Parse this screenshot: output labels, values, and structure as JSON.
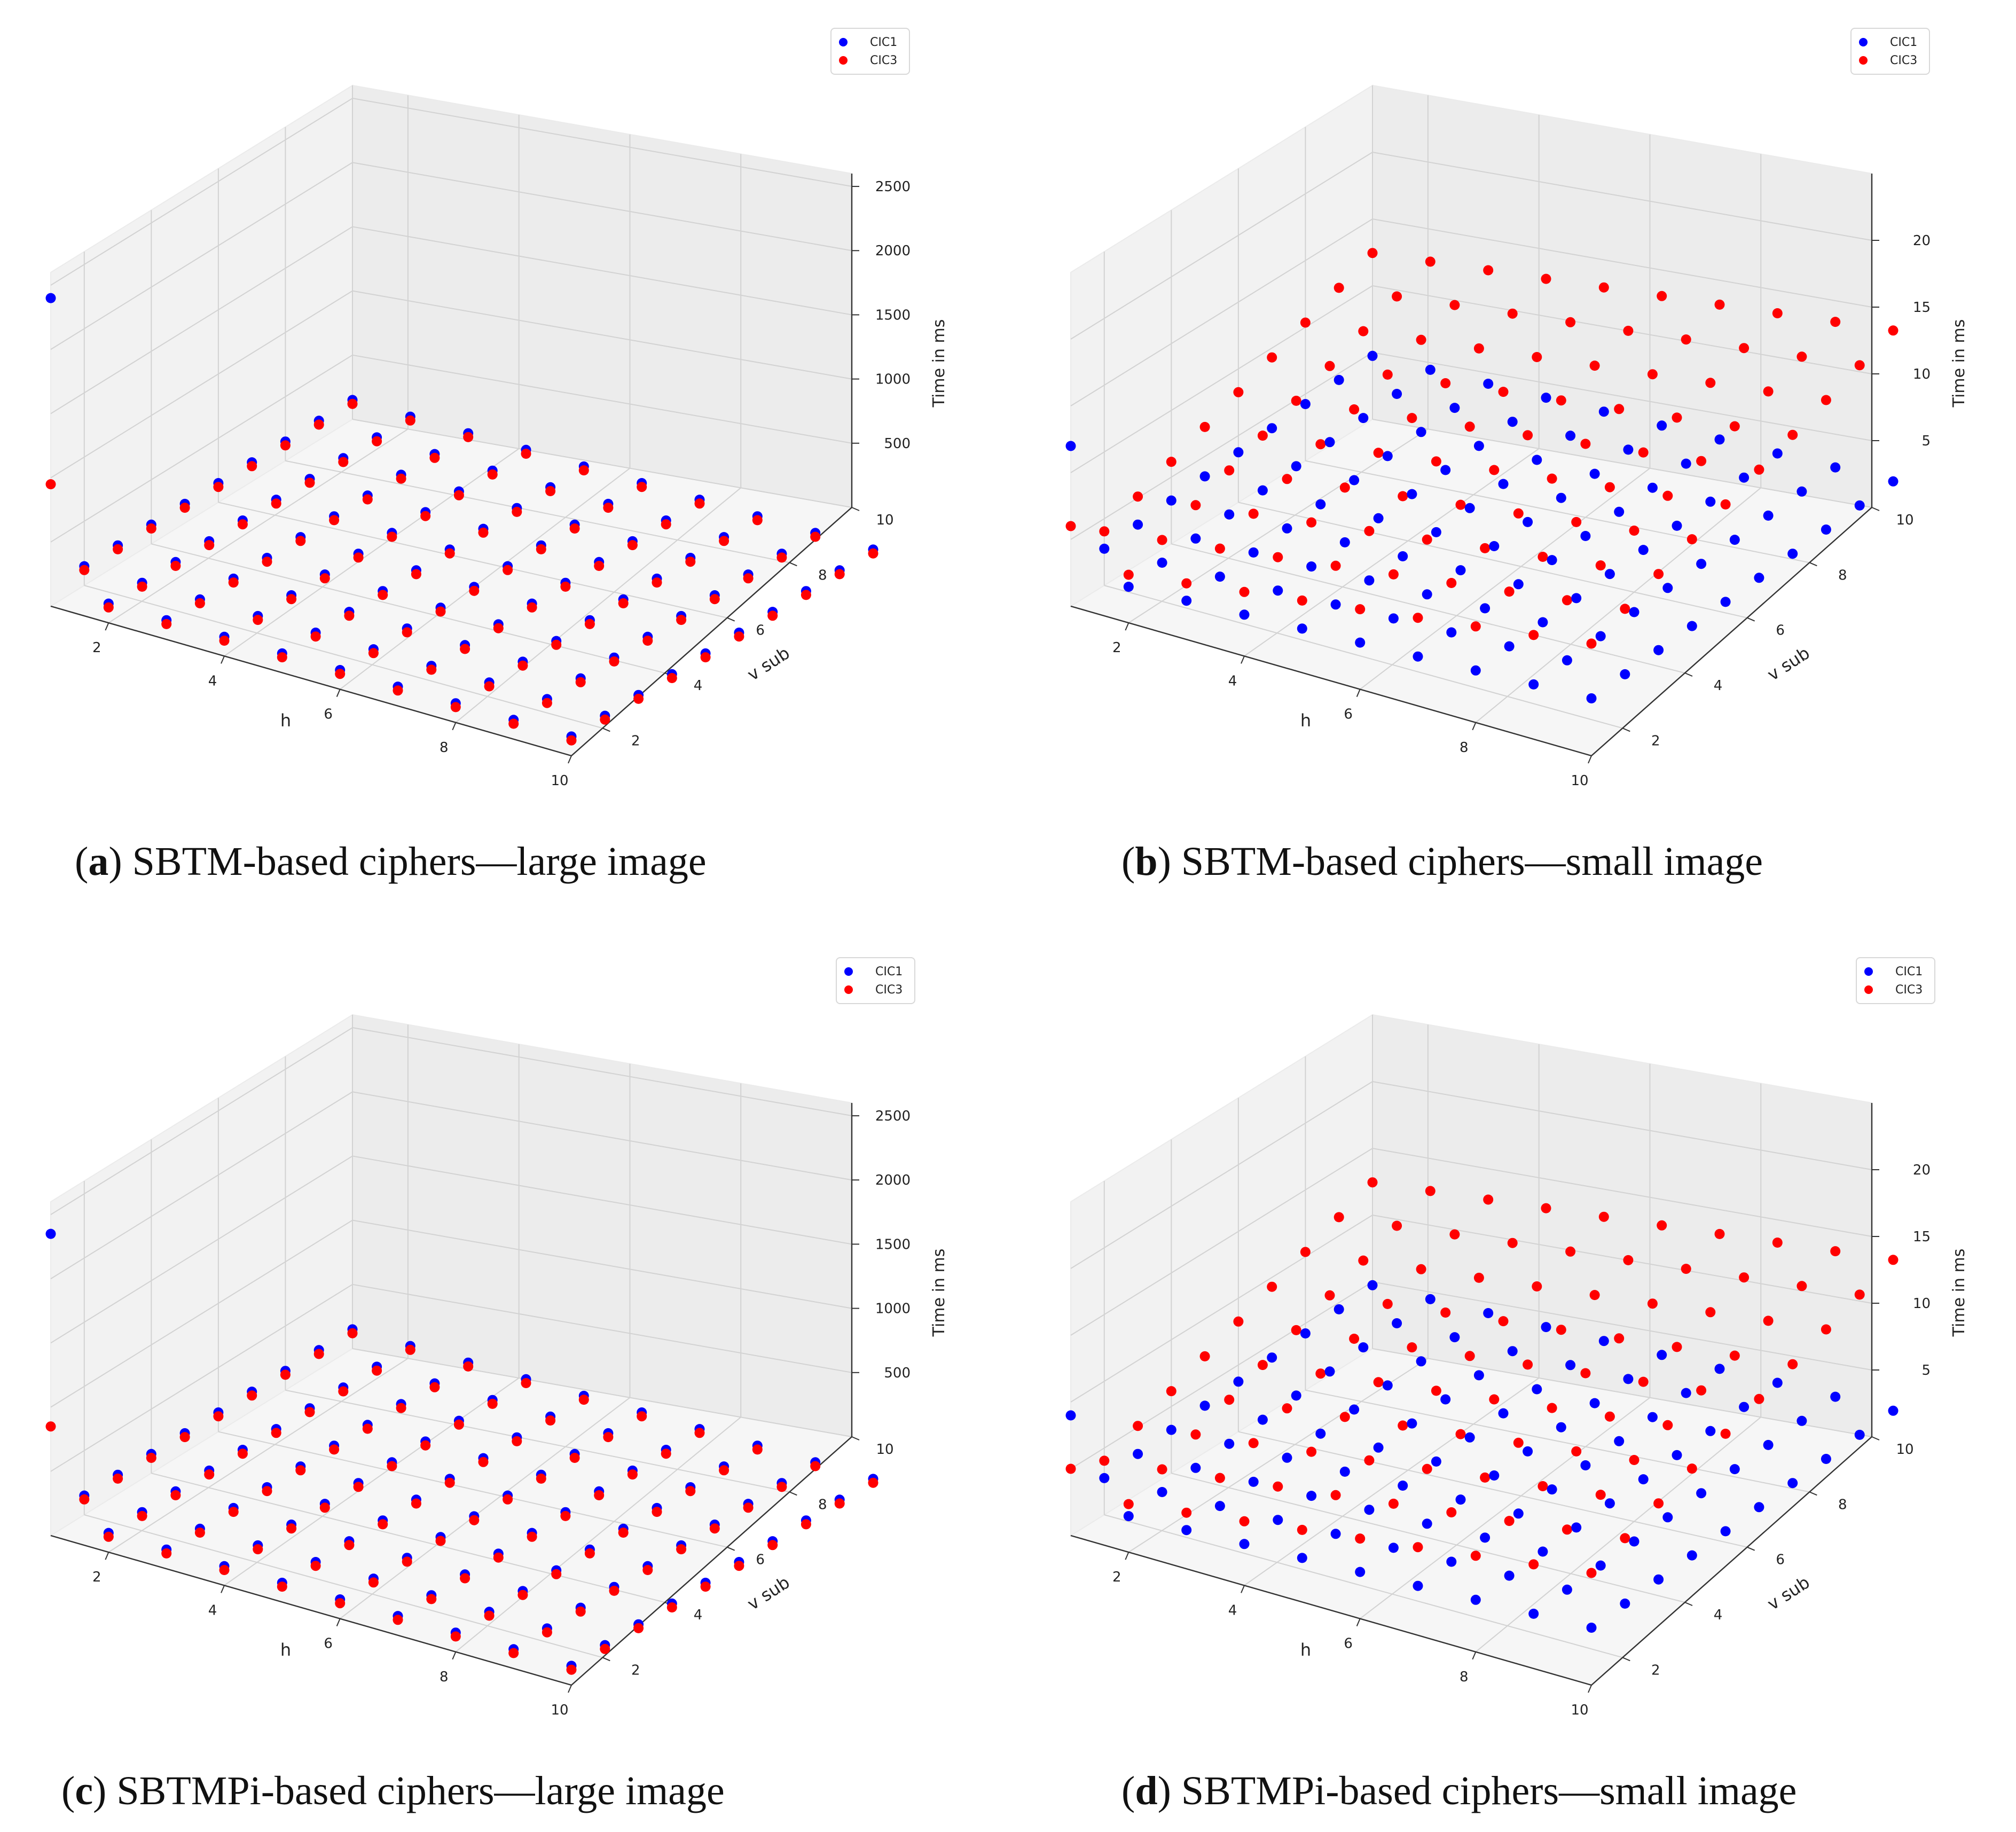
{
  "figure": {
    "series_colors": {
      "CIC1": "#0000ff",
      "CIC3": "#ff0000"
    }
  },
  "chart_data": [
    {
      "id": "a",
      "type": "scatter3d",
      "caption_label": "a",
      "caption_text": "SBTM-based ciphers—large image",
      "xlabel": "h",
      "ylabel": "v sub",
      "zlabel": "Time in ms",
      "x_ticks": [
        "2",
        "4",
        "6",
        "8",
        "10"
      ],
      "y_ticks": [
        "2",
        "4",
        "6",
        "8",
        "10"
      ],
      "z_ticks": [
        "500",
        "1000",
        "1500",
        "2000",
        "2500"
      ],
      "xlim": [
        1,
        10
      ],
      "ylim": [
        1,
        10
      ],
      "zlim": [
        0,
        2600
      ],
      "legend": [
        "CIC1",
        "CIC3"
      ],
      "series": [
        {
          "name": "CIC1",
          "color": "#0000ff",
          "base": 150,
          "h_slope": 0,
          "v_slope": 0,
          "outlier": {
            "h": 1,
            "v": 1,
            "z": 2400
          }
        },
        {
          "name": "CIC3",
          "color": "#ff0000",
          "base": 120,
          "h_slope": 0,
          "v_slope": 0,
          "outlier": {
            "h": 1,
            "v": 1,
            "z": 950
          }
        }
      ]
    },
    {
      "id": "b",
      "type": "scatter3d",
      "caption_label": "b",
      "caption_text": "SBTM-based ciphers—small image",
      "xlabel": "h",
      "ylabel": "v sub",
      "zlabel": "Time in ms",
      "x_ticks": [
        "2",
        "4",
        "6",
        "8",
        "10"
      ],
      "y_ticks": [
        "2",
        "4",
        "6",
        "8",
        "10"
      ],
      "z_ticks": [
        "5",
        "10",
        "15",
        "20"
      ],
      "xlim": [
        1,
        10
      ],
      "ylim": [
        1,
        10
      ],
      "zlim": [
        0,
        25
      ],
      "legend": [
        "CIC1",
        "CIC3"
      ],
      "series": [
        {
          "name": "CIC1",
          "color": "#0000ff",
          "base": 2.5,
          "h_slope": 0.2,
          "v_slope": 0.25,
          "outlier": {
            "h": 1,
            "v": 1,
            "z": 12
          }
        },
        {
          "name": "CIC3",
          "color": "#ff0000",
          "base": 3.0,
          "h_slope": 0.6,
          "v_slope": 1.05,
          "outlier": {
            "h": 1,
            "v": 1,
            "z": 6
          }
        }
      ]
    },
    {
      "id": "c",
      "type": "scatter3d",
      "caption_label": "c",
      "caption_text": "SBTMPi-based ciphers—large image",
      "xlabel": "h",
      "ylabel": "v sub",
      "zlabel": "Time in ms",
      "x_ticks": [
        "2",
        "4",
        "6",
        "8",
        "10"
      ],
      "y_ticks": [
        "2",
        "4",
        "6",
        "8",
        "10"
      ],
      "z_ticks": [
        "500",
        "1000",
        "1500",
        "2000",
        "2500"
      ],
      "xlim": [
        1,
        10
      ],
      "ylim": [
        1,
        10
      ],
      "zlim": [
        0,
        2600
      ],
      "legend": [
        "CIC1",
        "CIC3"
      ],
      "series": [
        {
          "name": "CIC1",
          "color": "#0000ff",
          "base": 150,
          "h_slope": 0,
          "v_slope": 0,
          "outlier": {
            "h": 1,
            "v": 1,
            "z": 2350
          }
        },
        {
          "name": "CIC3",
          "color": "#ff0000",
          "base": 120,
          "h_slope": 0,
          "v_slope": 0,
          "outlier": {
            "h": 1,
            "v": 1,
            "z": 850
          }
        }
      ]
    },
    {
      "id": "d",
      "type": "scatter3d",
      "caption_label": "d",
      "caption_text": "SBTMPi-based ciphers—small image",
      "xlabel": "h",
      "ylabel": "v sub",
      "zlabel": "Time in ms",
      "x_ticks": [
        "2",
        "4",
        "6",
        "8",
        "10"
      ],
      "y_ticks": [
        "2",
        "4",
        "6",
        "8",
        "10"
      ],
      "z_ticks": [
        "5",
        "10",
        "15",
        "20"
      ],
      "xlim": [
        1,
        10
      ],
      "ylim": [
        1,
        10
      ],
      "zlim": [
        0,
        25
      ],
      "legend": [
        "CIC1",
        "CIC3"
      ],
      "series": [
        {
          "name": "CIC1",
          "color": "#0000ff",
          "base": 2.5,
          "h_slope": 0.2,
          "v_slope": 0.25,
          "outlier": {
            "h": 1,
            "v": 1,
            "z": 9
          }
        },
        {
          "name": "CIC3",
          "color": "#ff0000",
          "base": 3.0,
          "h_slope": 0.6,
          "v_slope": 1.05,
          "outlier": {
            "h": 1,
            "v": 1,
            "z": 5
          }
        }
      ]
    }
  ]
}
